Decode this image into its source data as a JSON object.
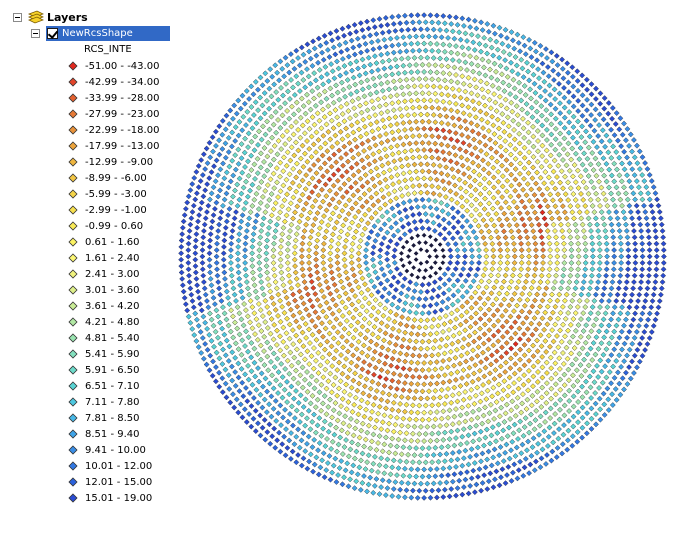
{
  "toc": {
    "root_label": "Layers",
    "layer": {
      "name": "NewRcsShape",
      "checked": true,
      "field": "RCS_INTE"
    },
    "legend": [
      {
        "label": "-51.00 - -43.00",
        "color": "#e0281e"
      },
      {
        "label": "-42.99 - -34.00",
        "color": "#e2452a"
      },
      {
        "label": "-33.99 - -28.00",
        "color": "#e3612f"
      },
      {
        "label": "-27.99 - -23.00",
        "color": "#e67a36"
      },
      {
        "label": "-22.99 - -18.00",
        "color": "#e8923a"
      },
      {
        "label": "-17.99 - -13.00",
        "color": "#eca43c"
      },
      {
        "label": "-12.99 - -9.00",
        "color": "#efb640"
      },
      {
        "label": "-8.99 - -6.00",
        "color": "#f2c645"
      },
      {
        "label": "-5.99 - -3.00",
        "color": "#f5d449"
      },
      {
        "label": "-2.99 - -1.00",
        "color": "#f7e04e"
      },
      {
        "label": "-0.99 - 0.60",
        "color": "#f9ea57"
      },
      {
        "label": "0.61 - 1.60",
        "color": "#fbf263"
      },
      {
        "label": "1.61 - 2.40",
        "color": "#fbf674"
      },
      {
        "label": "2.41 - 3.00",
        "color": "#f0f27e"
      },
      {
        "label": "3.01 - 3.60",
        "color": "#def08a"
      },
      {
        "label": "3.61 - 4.20",
        "color": "#c9ec96"
      },
      {
        "label": "4.21 - 4.80",
        "color": "#b2e8a4"
      },
      {
        "label": "4.81 - 5.40",
        "color": "#9ae4b1"
      },
      {
        "label": "5.41 - 5.90",
        "color": "#83e0be"
      },
      {
        "label": "5.91 - 6.50",
        "color": "#6ddbca"
      },
      {
        "label": "6.51 - 7.10",
        "color": "#59d4d4"
      },
      {
        "label": "7.11 - 7.80",
        "color": "#4ec8e0"
      },
      {
        "label": "7.81 - 8.50",
        "color": "#48b8e6"
      },
      {
        "label": "8.51 - 9.40",
        "color": "#40a4e8"
      },
      {
        "label": "9.41 - 10.00",
        "color": "#3a8ee6"
      },
      {
        "label": "10.01 - 12.00",
        "color": "#3278e2"
      },
      {
        "label": "12.01 - 15.00",
        "color": "#2c62dc"
      },
      {
        "label": "15.01 - 19.00",
        "color": "#2a4cd2"
      }
    ]
  },
  "icons": {
    "expander_root": "collapse-icon",
    "layers": "layers-icon",
    "expander_layer": "collapse-icon",
    "checkbox": "checkbox-icon",
    "legend_symbol": "diamond-icon"
  }
}
